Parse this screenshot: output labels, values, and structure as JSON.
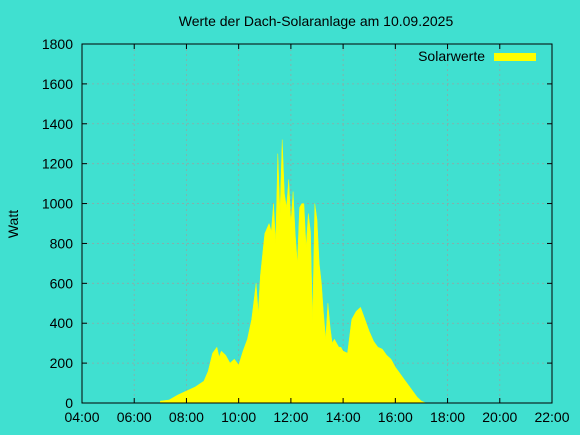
{
  "chart_data": {
    "type": "area",
    "title": "Werte der Dach-Solaranlage am 10.09.2025",
    "xlabel": "",
    "ylabel": "Watt",
    "xlim": [
      "04:00",
      "22:00"
    ],
    "ylim": [
      0,
      1800
    ],
    "x_ticks": [
      "04:00",
      "06:00",
      "08:00",
      "10:00",
      "12:00",
      "14:00",
      "16:00",
      "18:00",
      "20:00",
      "22:00"
    ],
    "y_ticks": [
      0,
      200,
      400,
      600,
      800,
      1000,
      1200,
      1400,
      1600,
      1800
    ],
    "grid": true,
    "legend_position": "top-right",
    "colors": {
      "background": "#40e0d0",
      "series": "#ffff00",
      "grid": "#8fa8a4"
    },
    "series": [
      {
        "name": "Solarwerte",
        "x": [
          "07:00",
          "07:20",
          "07:40",
          "08:00",
          "08:20",
          "08:40",
          "08:50",
          "09:00",
          "09:10",
          "09:15",
          "09:20",
          "09:30",
          "09:40",
          "09:50",
          "10:00",
          "10:10",
          "10:20",
          "10:30",
          "10:40",
          "10:45",
          "10:50",
          "11:00",
          "11:10",
          "11:15",
          "11:20",
          "11:25",
          "11:30",
          "11:35",
          "11:40",
          "11:45",
          "11:50",
          "11:55",
          "12:00",
          "12:05",
          "12:10",
          "12:15",
          "12:20",
          "12:25",
          "12:30",
          "12:35",
          "12:40",
          "12:45",
          "12:50",
          "12:55",
          "13:00",
          "13:05",
          "13:10",
          "13:15",
          "13:20",
          "13:25",
          "13:30",
          "13:35",
          "13:40",
          "13:45",
          "13:50",
          "13:55",
          "14:00",
          "14:10",
          "14:20",
          "14:30",
          "14:40",
          "14:50",
          "15:00",
          "15:10",
          "15:20",
          "15:30",
          "15:40",
          "15:50",
          "16:00",
          "16:10",
          "16:20",
          "16:30",
          "16:40",
          "16:50",
          "17:00",
          "17:10",
          "17:20",
          "17:30",
          "17:40",
          "17:50",
          "18:00",
          "18:20",
          "18:40",
          "19:00",
          "19:20"
        ],
        "values": [
          10,
          15,
          40,
          60,
          80,
          110,
          160,
          250,
          280,
          230,
          260,
          240,
          200,
          220,
          190,
          260,
          320,
          420,
          600,
          450,
          640,
          850,
          900,
          860,
          1000,
          800,
          1250,
          950,
          1320,
          1050,
          980,
          1120,
          900,
          1060,
          850,
          700,
          980,
          1000,
          1000,
          780,
          950,
          860,
          400,
          1000,
          920,
          700,
          600,
          450,
          320,
          500,
          380,
          300,
          320,
          300,
          280,
          280,
          260,
          250,
          420,
          460,
          480,
          420,
          360,
          310,
          280,
          270,
          240,
          220,
          180,
          150,
          120,
          90,
          60,
          30,
          10,
          0,
          0,
          0,
          0,
          0,
          0,
          0,
          0,
          0,
          0
        ]
      }
    ]
  }
}
